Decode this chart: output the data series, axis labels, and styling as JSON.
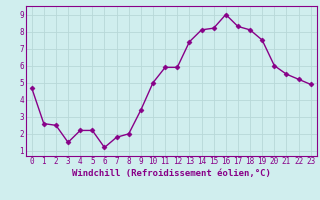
{
  "x": [
    0,
    1,
    2,
    3,
    4,
    5,
    6,
    7,
    8,
    9,
    10,
    11,
    12,
    13,
    14,
    15,
    16,
    17,
    18,
    19,
    20,
    21,
    22,
    23
  ],
  "y": [
    4.7,
    2.6,
    2.5,
    1.5,
    2.2,
    2.2,
    1.2,
    1.8,
    2.0,
    3.4,
    5.0,
    5.9,
    5.9,
    7.4,
    8.1,
    8.2,
    9.0,
    8.3,
    8.1,
    7.5,
    6.0,
    5.5,
    5.2,
    4.9
  ],
  "line_color": "#880088",
  "marker": "D",
  "marker_size": 2.5,
  "xlabel": "Windchill (Refroidissement éolien,°C)",
  "xlabel_fontsize": 6.5,
  "xlim": [
    -0.5,
    23.5
  ],
  "ylim": [
    0.7,
    9.5
  ],
  "yticks": [
    1,
    2,
    3,
    4,
    5,
    6,
    7,
    8,
    9
  ],
  "xticks": [
    0,
    1,
    2,
    3,
    4,
    5,
    6,
    7,
    8,
    9,
    10,
    11,
    12,
    13,
    14,
    15,
    16,
    17,
    18,
    19,
    20,
    21,
    22,
    23
  ],
  "tick_fontsize": 5.5,
  "bg_color": "#d0eeee",
  "grid_color": "#b8d8d8",
  "line_width": 1.0,
  "spine_color": "#880088",
  "tick_color": "#880088",
  "label_color": "#880088"
}
